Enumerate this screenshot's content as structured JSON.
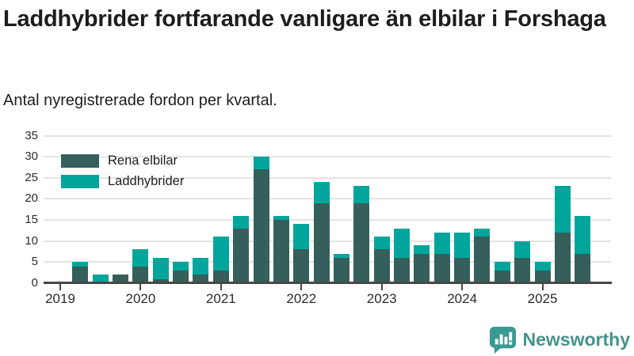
{
  "header": {
    "title": "Laddhybrider fortfarande vanligare än elbilar i Forshaga",
    "subtitle": "Antal nyregistrerade fordon per kvartal."
  },
  "footer": {
    "brand": "Newsworthy"
  },
  "chart_data": {
    "type": "bar",
    "stacked": true,
    "title": "Laddhybrider fortfarande vanligare än elbilar i Forshaga",
    "subtitle": "Antal nyregistrerade fordon per kvartal.",
    "xlabel": "",
    "ylabel": "",
    "ylim": [
      0,
      35
    ],
    "yticks": [
      0,
      5,
      10,
      15,
      20,
      25,
      30,
      35
    ],
    "grid": true,
    "legend_position": "top-left",
    "year_labels": [
      "2019",
      "2020",
      "2021",
      "2022",
      "2023",
      "2024",
      "2025"
    ],
    "x": [
      "2019 Q1",
      "2019 Q2",
      "2019 Q3",
      "2019 Q4",
      "2020 Q1",
      "2020 Q2",
      "2020 Q3",
      "2020 Q4",
      "2021 Q1",
      "2021 Q2",
      "2021 Q3",
      "2021 Q4",
      "2022 Q1",
      "2022 Q2",
      "2022 Q3",
      "2022 Q4",
      "2023 Q1",
      "2023 Q2",
      "2023 Q3",
      "2023 Q4",
      "2024 Q1",
      "2024 Q2",
      "2024 Q3",
      "2024 Q4",
      "2025 Q1",
      "2025 Q2",
      "2025 Q3"
    ],
    "series": [
      {
        "name": "Rena elbilar",
        "color": "#355f5a",
        "values": [
          0,
          4,
          0,
          2,
          4,
          1,
          3,
          2,
          3,
          13,
          27,
          15,
          8,
          19,
          6,
          19,
          8,
          6,
          7,
          7,
          6,
          11,
          3,
          6,
          3,
          12,
          7
        ]
      },
      {
        "name": "Laddhybrider",
        "color": "#00a69c",
        "values": [
          0,
          1,
          2,
          0,
          4,
          5,
          2,
          4,
          8,
          3,
          3,
          1,
          6,
          5,
          1,
          4,
          3,
          7,
          2,
          5,
          6,
          2,
          2,
          4,
          2,
          11,
          9
        ]
      }
    ],
    "colors": {
      "grid": "#e4e4e4",
      "axis": "#474747",
      "text": "#1d1d1b",
      "brand": "#45938c"
    }
  }
}
